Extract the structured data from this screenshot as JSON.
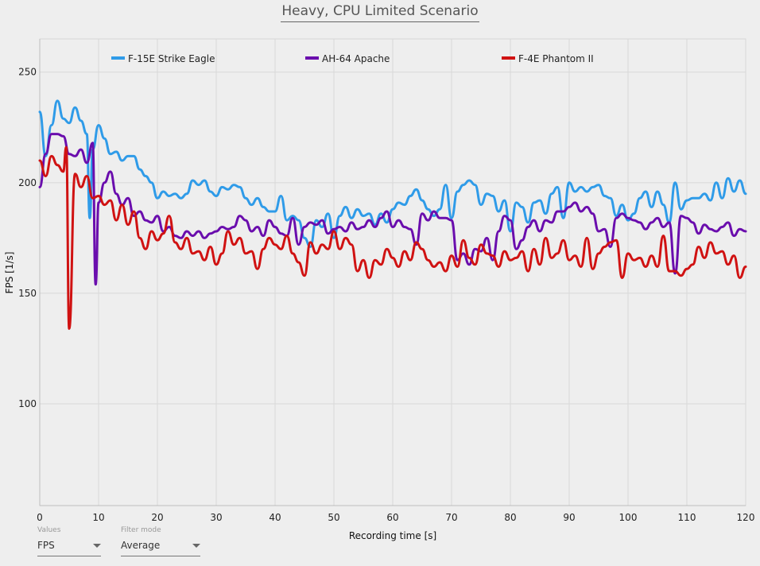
{
  "title": "Heavy, CPU Limited Scenario",
  "controls": {
    "values": {
      "label": "Values",
      "selected": "FPS"
    },
    "filter_mode": {
      "label": "Filter mode",
      "selected": "Average"
    }
  },
  "chart_data": {
    "type": "line",
    "title": "Heavy, CPU Limited Scenario",
    "xlabel": "Recording time [s]",
    "ylabel": "FPS [1/s]",
    "xlim": [
      0,
      120
    ],
    "ylim": [
      54,
      265
    ],
    "xticks": [
      0,
      10,
      20,
      30,
      40,
      50,
      60,
      70,
      80,
      90,
      100,
      110,
      120
    ],
    "yticks": [
      100,
      150,
      200,
      250
    ],
    "grid": true,
    "legend_position": "top",
    "series": [
      {
        "name": "F-15E Strike Eagle",
        "color": "#2f9be8",
        "x": [
          0,
          1,
          2,
          3,
          4,
          5,
          6,
          7,
          8,
          8.5,
          9,
          10,
          11,
          12,
          13,
          14,
          15,
          16,
          17,
          18,
          19,
          20,
          21,
          22,
          23,
          24,
          25,
          26,
          27,
          28,
          29,
          30,
          31,
          32,
          33,
          34,
          35,
          36,
          37,
          38,
          39,
          40,
          41,
          42,
          43,
          44,
          45,
          46,
          47,
          48,
          49,
          50,
          51,
          52,
          53,
          54,
          55,
          56,
          57,
          58,
          59,
          60,
          61,
          62,
          63,
          64,
          65,
          66,
          67,
          68,
          69,
          70,
          71,
          72,
          73,
          74,
          75,
          76,
          77,
          78,
          79,
          80,
          81,
          82,
          83,
          84,
          85,
          86,
          87,
          88,
          89,
          90,
          91,
          92,
          93,
          94,
          95,
          96,
          97,
          98,
          99,
          100,
          101,
          102,
          103,
          104,
          105,
          106,
          107,
          108,
          109,
          110,
          111,
          112,
          113,
          114,
          115,
          116,
          117,
          118,
          119,
          120
        ],
        "y": [
          232,
          212,
          226,
          237,
          229,
          227,
          234,
          228,
          222,
          184,
          215,
          226,
          220,
          213,
          214,
          210,
          212,
          212,
          206,
          203,
          200,
          193,
          196,
          194,
          195,
          193,
          195,
          201,
          199,
          201,
          196,
          194,
          198,
          197,
          199,
          198,
          193,
          190,
          193,
          189,
          187,
          187,
          194,
          183,
          185,
          183,
          175,
          171,
          183,
          180,
          186,
          175,
          185,
          189,
          184,
          188,
          185,
          186,
          181,
          186,
          182,
          188,
          191,
          190,
          194,
          197,
          192,
          188,
          185,
          188,
          199,
          184,
          196,
          199,
          201,
          199,
          190,
          195,
          194,
          187,
          192,
          178,
          191,
          189,
          182,
          191,
          192,
          186,
          195,
          198,
          184,
          200,
          196,
          198,
          196,
          198,
          199,
          194,
          193,
          185,
          190,
          183,
          186,
          193,
          196,
          189,
          196,
          190,
          182,
          200,
          188,
          192,
          193,
          193,
          195,
          192,
          200,
          193,
          202,
          196,
          201,
          195
        ]
      },
      {
        "name": "AH-64 Apache",
        "color": "#6a0dad",
        "x": [
          0,
          1,
          2,
          3,
          4,
          5,
          6,
          7,
          8,
          9,
          9.5,
          10,
          11,
          12,
          13,
          14,
          15,
          16,
          17,
          18,
          19,
          20,
          21,
          22,
          23,
          24,
          25,
          26,
          27,
          28,
          29,
          30,
          31,
          32,
          33,
          34,
          35,
          36,
          37,
          38,
          39,
          40,
          41,
          42,
          43,
          44,
          45,
          46,
          47,
          48,
          49,
          50,
          51,
          52,
          53,
          54,
          55,
          56,
          57,
          58,
          59,
          60,
          61,
          62,
          63,
          64,
          65,
          66,
          67,
          68,
          69,
          70,
          71,
          72,
          73,
          74,
          75,
          76,
          77,
          78,
          79,
          80,
          81,
          82,
          83,
          84,
          85,
          86,
          87,
          88,
          89,
          90,
          91,
          92,
          93,
          94,
          95,
          96,
          97,
          98,
          99,
          100,
          101,
          102,
          103,
          104,
          105,
          106,
          107,
          108,
          109,
          110,
          111,
          112,
          113,
          114,
          115,
          116,
          117,
          118,
          119,
          120
        ],
        "y": [
          198,
          213,
          222,
          222,
          221,
          213,
          212,
          215,
          209,
          218,
          154,
          191,
          200,
          205,
          195,
          190,
          193,
          185,
          187,
          183,
          182,
          185,
          178,
          180,
          176,
          175,
          178,
          176,
          178,
          175,
          177,
          178,
          180,
          179,
          180,
          185,
          183,
          178,
          180,
          176,
          183,
          180,
          177,
          176,
          184,
          172,
          180,
          182,
          181,
          183,
          177,
          179,
          180,
          178,
          182,
          179,
          180,
          183,
          180,
          184,
          187,
          180,
          183,
          180,
          179,
          172,
          186,
          183,
          187,
          184,
          184,
          183,
          165,
          168,
          163,
          170,
          169,
          175,
          165,
          178,
          185,
          183,
          170,
          174,
          180,
          183,
          178,
          183,
          182,
          187,
          187,
          189,
          191,
          187,
          189,
          186,
          178,
          179,
          171,
          184,
          186,
          184,
          183,
          182,
          179,
          182,
          184,
          180,
          182,
          159,
          185,
          184,
          182,
          177,
          181,
          179,
          178,
          180,
          182,
          176,
          179,
          178
        ]
      },
      {
        "name": "F-4E Phantom II",
        "color": "#d01212",
        "x": [
          0,
          1,
          2,
          3,
          4,
          4.5,
          5,
          6,
          7,
          8,
          9,
          10,
          11,
          12,
          13,
          14,
          15,
          16,
          17,
          18,
          19,
          20,
          21,
          22,
          23,
          24,
          25,
          26,
          27,
          28,
          29,
          30,
          31,
          32,
          33,
          34,
          35,
          36,
          37,
          38,
          39,
          40,
          41,
          42,
          43,
          44,
          45,
          46,
          47,
          48,
          49,
          50,
          51,
          52,
          53,
          54,
          55,
          56,
          57,
          58,
          59,
          60,
          61,
          62,
          63,
          64,
          65,
          66,
          67,
          68,
          69,
          70,
          71,
          72,
          73,
          74,
          75,
          76,
          77,
          78,
          79,
          80,
          81,
          82,
          83,
          84,
          85,
          86,
          87,
          88,
          89,
          90,
          91,
          92,
          93,
          94,
          95,
          96,
          97,
          98,
          99,
          100,
          101,
          102,
          103,
          104,
          105,
          106,
          107,
          108,
          109,
          110,
          111,
          112,
          113,
          114,
          115,
          116,
          117,
          118,
          119,
          120
        ],
        "y": [
          210,
          203,
          212,
          208,
          205,
          216,
          134,
          204,
          198,
          203,
          193,
          194,
          190,
          192,
          183,
          190,
          181,
          187,
          175,
          170,
          178,
          174,
          177,
          185,
          173,
          170,
          175,
          168,
          169,
          165,
          171,
          163,
          168,
          178,
          172,
          175,
          168,
          169,
          161,
          170,
          175,
          172,
          170,
          176,
          168,
          164,
          158,
          173,
          168,
          172,
          170,
          178,
          170,
          175,
          172,
          160,
          165,
          157,
          165,
          163,
          170,
          166,
          162,
          169,
          165,
          173,
          170,
          165,
          162,
          164,
          160,
          167,
          162,
          174,
          166,
          163,
          172,
          168,
          167,
          162,
          169,
          165,
          166,
          169,
          160,
          170,
          163,
          175,
          166,
          168,
          174,
          165,
          167,
          162,
          175,
          161,
          168,
          171,
          173,
          174,
          157,
          168,
          165,
          166,
          162,
          167,
          162,
          176,
          160,
          160,
          158,
          161,
          163,
          171,
          166,
          173,
          168,
          169,
          163,
          167,
          157,
          162
        ]
      }
    ]
  }
}
